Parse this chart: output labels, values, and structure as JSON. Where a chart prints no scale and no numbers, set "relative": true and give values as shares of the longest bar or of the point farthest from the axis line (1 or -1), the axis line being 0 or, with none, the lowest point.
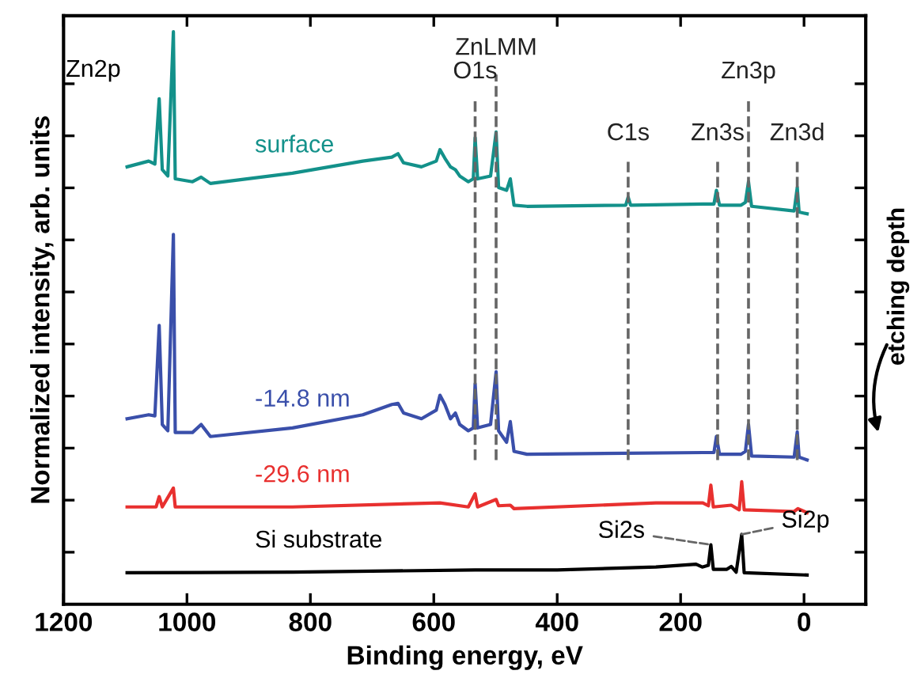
{
  "chart_data": {
    "type": "line",
    "relative": true,
    "xlabel": "Binding energy, eV",
    "ylabel": "Normalized intensity, arb. units",
    "xlim": [
      1200,
      -100
    ],
    "xticks": [
      1200,
      1000,
      800,
      600,
      400,
      200,
      0
    ],
    "tick_labels": "x",
    "grid": false,
    "legend": false,
    "marker": "none",
    "line_style": "solid",
    "series": [
      {
        "name": "surface",
        "color": "#13918a",
        "x": [
          1097,
          1062,
          1052,
          1045,
          1040,
          1031,
          1022,
          1019,
          991,
          977,
          962,
          829,
          715,
          668,
          658,
          649,
          620,
          596,
          590,
          582,
          573,
          565,
          558,
          544,
          536,
          533,
          529,
          508,
          499,
          495,
          482,
          476,
          470,
          449,
          289,
          285,
          281,
          164,
          146,
          142,
          137,
          102,
          95,
          90,
          85,
          16,
          11,
          8,
          -5
        ],
        "values": [
          0.764,
          0.774,
          0.769,
          0.883,
          0.759,
          0.748,
          1.0,
          0.743,
          0.738,
          0.746,
          0.735,
          0.753,
          0.774,
          0.781,
          0.787,
          0.771,
          0.764,
          0.774,
          0.794,
          0.779,
          0.764,
          0.759,
          0.748,
          0.738,
          0.743,
          0.815,
          0.743,
          0.748,
          0.825,
          0.728,
          0.723,
          0.743,
          0.697,
          0.695,
          0.697,
          0.711,
          0.697,
          0.699,
          0.699,
          0.723,
          0.697,
          0.697,
          0.702,
          0.738,
          0.695,
          0.687,
          0.728,
          0.685,
          0.682
        ]
      },
      {
        "name": "-14.8 nm",
        "color": "#3a4faa",
        "x": [
          1097,
          1062,
          1052,
          1045,
          1040,
          1031,
          1022,
          1019,
          991,
          977,
          962,
          829,
          715,
          668,
          658,
          649,
          620,
          596,
          590,
          582,
          573,
          565,
          558,
          544,
          536,
          533,
          529,
          508,
          499,
          495,
          482,
          476,
          470,
          449,
          164,
          146,
          142,
          137,
          102,
          95,
          90,
          85,
          16,
          11,
          8,
          -5
        ],
        "values": [
          0.324,
          0.331,
          0.329,
          0.487,
          0.314,
          0.303,
          0.646,
          0.3,
          0.3,
          0.314,
          0.293,
          0.308,
          0.331,
          0.349,
          0.351,
          0.334,
          0.324,
          0.339,
          0.365,
          0.349,
          0.324,
          0.334,
          0.314,
          0.303,
          0.308,
          0.385,
          0.308,
          0.314,
          0.406,
          0.303,
          0.283,
          0.319,
          0.267,
          0.262,
          0.265,
          0.265,
          0.293,
          0.262,
          0.262,
          0.267,
          0.314,
          0.259,
          0.257,
          0.301,
          0.257,
          0.252
        ]
      },
      {
        "name": "-29.6 nm",
        "color": "#e8302f",
        "x": [
          1097,
          1050,
          1045,
          1040,
          1022,
          1019,
          977,
          829,
          590,
          544,
          533,
          529,
          499,
          495,
          476,
          470,
          240,
          164,
          155,
          151,
          147,
          118,
          105,
          101,
          97,
          16,
          10,
          -5
        ],
        "values": [
          0.17,
          0.17,
          0.188,
          0.17,
          0.203,
          0.17,
          0.17,
          0.17,
          0.177,
          0.17,
          0.193,
          0.17,
          0.183,
          0.172,
          0.173,
          0.167,
          0.177,
          0.177,
          0.172,
          0.208,
          0.17,
          0.173,
          0.165,
          0.214,
          0.165,
          0.162,
          0.167,
          0.16
        ]
      },
      {
        "name": "Si substrate",
        "color": "#000000",
        "x": [
          1097,
          829,
          533,
          400,
          240,
          175,
          165,
          155,
          151,
          147,
          125,
          118,
          110,
          101,
          97,
          -5
        ],
        "values": [
          0.055,
          0.056,
          0.06,
          0.06,
          0.065,
          0.07,
          0.065,
          0.068,
          0.104,
          0.061,
          0.061,
          0.066,
          0.056,
          0.122,
          0.055,
          0.051
        ]
      }
    ],
    "ref_lines": [
      {
        "axis": "x",
        "value": 533,
        "label": "O1s",
        "color": "#666666",
        "line_style": "dashed"
      },
      {
        "axis": "x",
        "value": 499,
        "label": "ZnLMM",
        "color": "#666666",
        "line_style": "dashed"
      },
      {
        "axis": "x",
        "value": 285,
        "label": "C1s",
        "color": "#666666",
        "line_style": "dashed"
      },
      {
        "axis": "x",
        "value": 140,
        "label": "Zn3s",
        "color": "#666666",
        "line_style": "dashed"
      },
      {
        "axis": "x",
        "value": 90,
        "label": "Zn3p",
        "color": "#666666",
        "line_style": "dashed"
      },
      {
        "axis": "x",
        "value": 11,
        "label": "Zn3d",
        "color": "#666666",
        "line_style": "dashed"
      }
    ],
    "annotations": [
      {
        "text": "Zn2p",
        "x": 1045,
        "y": 0.883
      },
      {
        "text": "Si2s",
        "x": 151,
        "y": 0.104
      },
      {
        "text": "Si2p",
        "x": 101,
        "y": 0.122
      },
      "etching depth"
    ]
  }
}
